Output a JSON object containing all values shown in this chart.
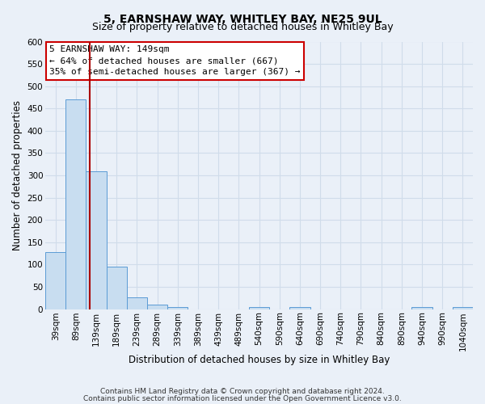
{
  "title_line1": "5, EARNSHAW WAY, WHITLEY BAY, NE25 9UL",
  "title_line2": "Size of property relative to detached houses in Whitley Bay",
  "xlabel": "Distribution of detached houses by size in Whitley Bay",
  "ylabel": "Number of detached properties",
  "bar_color": "#c8ddf0",
  "bar_edge_color": "#5b9bd5",
  "bin_labels": [
    "39sqm",
    "89sqm",
    "139sqm",
    "189sqm",
    "239sqm",
    "289sqm",
    "339sqm",
    "389sqm",
    "439sqm",
    "489sqm",
    "540sqm",
    "590sqm",
    "640sqm",
    "690sqm",
    "740sqm",
    "790sqm",
    "840sqm",
    "890sqm",
    "940sqm",
    "990sqm",
    "1040sqm"
  ],
  "bar_values": [
    128,
    470,
    310,
    95,
    27,
    11,
    4,
    0,
    0,
    0,
    4,
    0,
    4,
    0,
    0,
    0,
    0,
    0,
    4,
    0,
    4
  ],
  "ylim": [
    0,
    600
  ],
  "yticks": [
    0,
    50,
    100,
    150,
    200,
    250,
    300,
    350,
    400,
    450,
    500,
    550,
    600
  ],
  "annotation_title": "5 EARNSHAW WAY: 149sqm",
  "annotation_line1": "← 64% of detached houses are smaller (667)",
  "annotation_line2": "35% of semi-detached houses are larger (367) →",
  "vline_color": "#aa0000",
  "footer_line1": "Contains HM Land Registry data © Crown copyright and database right 2024.",
  "footer_line2": "Contains public sector information licensed under the Open Government Licence v3.0.",
  "background_color": "#eaf0f8",
  "grid_color": "#d0dcea",
  "title_fontsize": 10,
  "subtitle_fontsize": 9,
  "axis_label_fontsize": 8.5,
  "tick_fontsize": 7.5,
  "footer_fontsize": 6.5
}
